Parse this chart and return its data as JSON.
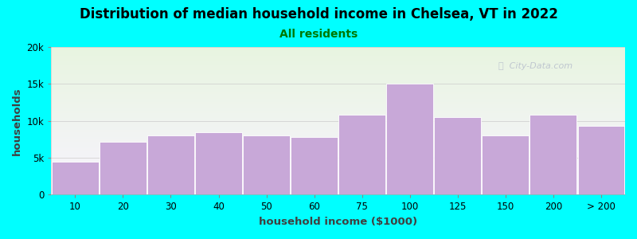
{
  "title": "Distribution of median household income in Chelsea, VT in 2022",
  "subtitle": "All residents",
  "xlabel": "household income ($1000)",
  "ylabel": "households",
  "background_color": "#00FFFF",
  "plot_bg_gradient_top": "#e8f5e0",
  "plot_bg_gradient_bottom": "#f5f0ff",
  "bar_color": "#c8a8d8",
  "bar_edge_color": "#ffffff",
  "categories": [
    "10",
    "20",
    "30",
    "40",
    "50",
    "60",
    "75",
    "100",
    "125",
    "150",
    "200",
    "> 200"
  ],
  "values": [
    4500,
    7200,
    8000,
    8500,
    8000,
    7800,
    10800,
    15000,
    10500,
    8000,
    10800,
    9300
  ],
  "ylim": [
    0,
    20000
  ],
  "yticks": [
    0,
    5000,
    10000,
    15000,
    20000
  ],
  "ytick_labels": [
    "0",
    "5k",
    "10k",
    "15k",
    "20k"
  ],
  "title_fontsize": 12,
  "subtitle_fontsize": 10,
  "axis_label_fontsize": 9.5,
  "tick_fontsize": 8.5,
  "watermark_text": "City-Data.com",
  "watermark_color": "#b8bfcc",
  "title_color": "#000000",
  "subtitle_color": "#007700"
}
